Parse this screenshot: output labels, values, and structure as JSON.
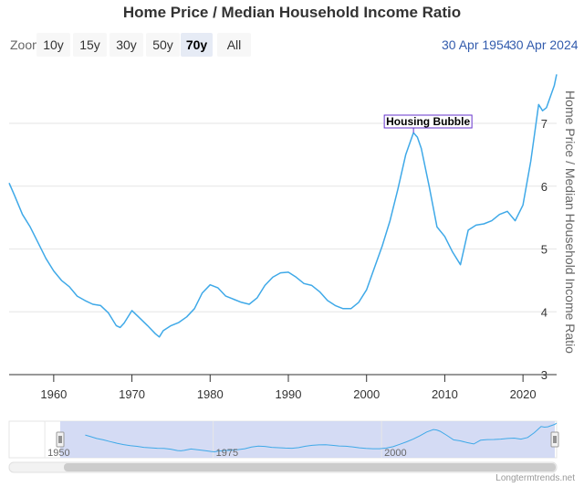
{
  "title": "Home Price / Median Household Income Ratio",
  "zoom": {
    "label": "Zoom",
    "buttons": [
      "10y",
      "15y",
      "30y",
      "50y",
      "70y",
      "All"
    ],
    "active": "70y"
  },
  "date_range": {
    "from": "30 Apr 1954",
    "to": "30 Apr 2024"
  },
  "credit": "Longtermtrends.net",
  "navigator": {
    "labels": [
      "1950",
      "1975",
      "2000"
    ]
  },
  "colors": {
    "line": "#3fa9e8",
    "accent": "#335cad",
    "navigator_mask": "#ccd5f2"
  },
  "chart_data": {
    "type": "line",
    "title": "Home Price / Median Household Income Ratio",
    "xlabel": "",
    "ylabel": "Home Price / Median Household Income Ratio",
    "xlim": [
      1954.3,
      2024.3
    ],
    "ylim": [
      3,
      7.8
    ],
    "x_ticks": [
      "1960",
      "1970",
      "1980",
      "1990",
      "2000",
      "2010",
      "2020"
    ],
    "y_ticks": [
      "3",
      "4",
      "5",
      "6",
      "7"
    ],
    "grid": true,
    "annotations": [
      {
        "text": "Housing Bubble",
        "x": 2006.0,
        "y": 6.85
      }
    ],
    "series": [
      {
        "name": "",
        "x": [
          1954.3,
          1955,
          1956,
          1957,
          1958,
          1959,
          1960,
          1961,
          1962,
          1963,
          1964,
          1965,
          1966,
          1967,
          1968,
          1968.5,
          1969,
          1970,
          1971,
          1972,
          1973,
          1973.5,
          1974,
          1975,
          1976,
          1977,
          1978,
          1979,
          1980,
          1981,
          1982,
          1983,
          1984,
          1985,
          1986,
          1987,
          1988,
          1989,
          1990,
          1991,
          1992,
          1993,
          1994,
          1995,
          1996,
          1997,
          1998,
          1999,
          2000,
          2001,
          2002,
          2003,
          2004,
          2005,
          2006,
          2006.5,
          2007,
          2008,
          2009,
          2010,
          2011,
          2012,
          2013,
          2014,
          2015,
          2016,
          2017,
          2018,
          2019,
          2020,
          2021,
          2022,
          2022.5,
          2023,
          2024,
          2024.3
        ],
        "values": [
          6.05,
          5.85,
          5.55,
          5.35,
          5.1,
          4.85,
          4.65,
          4.5,
          4.4,
          4.25,
          4.18,
          4.12,
          4.1,
          3.98,
          3.78,
          3.75,
          3.82,
          4.02,
          3.9,
          3.78,
          3.65,
          3.6,
          3.7,
          3.78,
          3.83,
          3.92,
          4.05,
          4.3,
          4.43,
          4.38,
          4.25,
          4.2,
          4.15,
          4.12,
          4.22,
          4.42,
          4.55,
          4.62,
          4.63,
          4.55,
          4.45,
          4.42,
          4.32,
          4.18,
          4.1,
          4.05,
          4.05,
          4.15,
          4.35,
          4.7,
          5.05,
          5.45,
          5.95,
          6.5,
          6.85,
          6.78,
          6.6,
          6.0,
          5.35,
          5.2,
          4.95,
          4.75,
          5.3,
          5.38,
          5.4,
          5.45,
          5.55,
          5.6,
          5.45,
          5.7,
          6.4,
          7.3,
          7.2,
          7.25,
          7.6,
          7.78
        ]
      }
    ]
  }
}
